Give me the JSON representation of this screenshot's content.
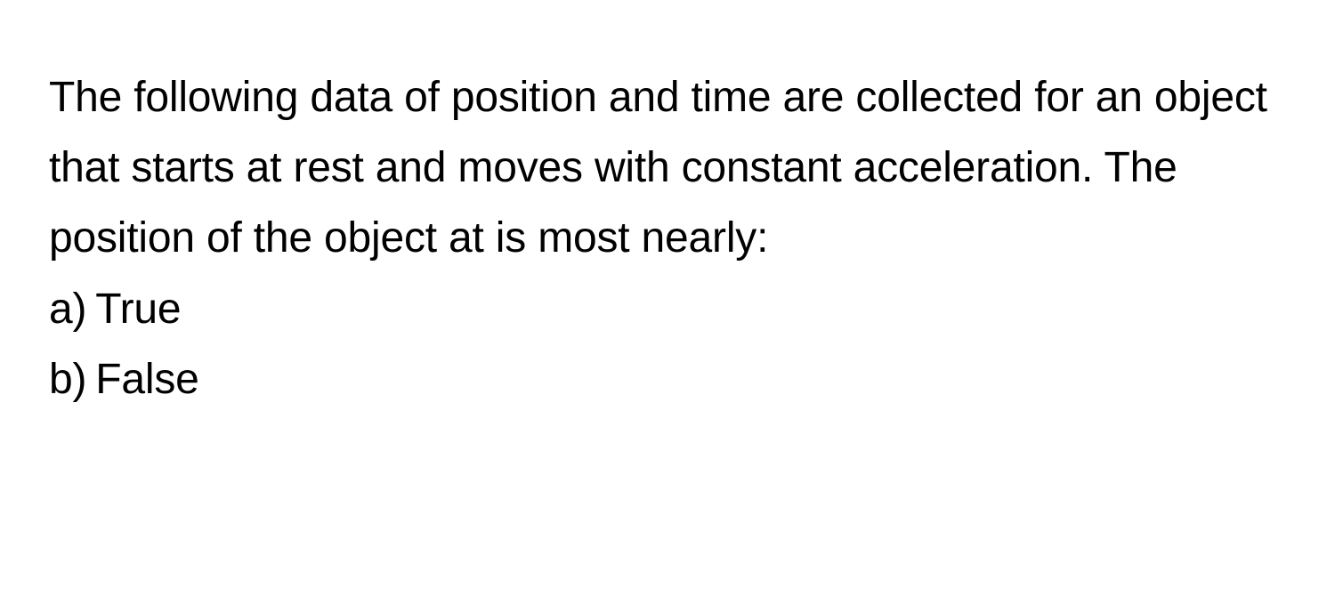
{
  "question": {
    "text": "The following data of position and time are collected for an object that starts at rest and moves with constant acceleration. The position of the object at is most nearly:",
    "font_size": 48,
    "color": "#000000",
    "line_height": 1.65
  },
  "options": [
    {
      "label": "a)",
      "text": "True"
    },
    {
      "label": "b)",
      "text": "False"
    }
  ],
  "styling": {
    "background_color": "#ffffff",
    "text_color": "#000000",
    "font_family": "-apple-system, sans-serif",
    "font_size": 48,
    "font_weight": 400
  }
}
